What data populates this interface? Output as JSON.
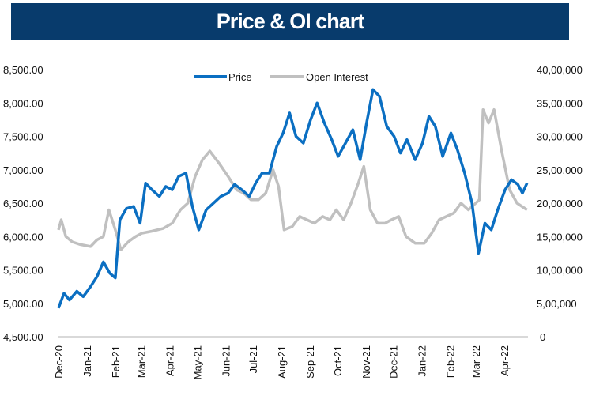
{
  "chart_data": {
    "type": "line",
    "title": "Price & OI chart",
    "legend": {
      "placement": "top-center",
      "entries": [
        "Price",
        "Open Interest"
      ]
    },
    "grid": false,
    "x_ticks": [
      "Dec-20",
      "Jan-21",
      "Feb-21",
      "Mar-21",
      "Apr-21",
      "May-21",
      "Jun-21",
      "Jul-21",
      "Aug-21",
      "Sep-21",
      "Oct-21",
      "Nov-21",
      "Dec-21",
      "Jan-22",
      "Feb-22",
      "Mar-22",
      "Apr-22"
    ],
    "x_range": [
      "2020-11-30",
      "2022-04-26"
    ],
    "y_left": {
      "range": [
        4500,
        8500
      ],
      "ticks": [
        "4,500.00",
        "5,000.00",
        "5,500.00",
        "6,000.00",
        "6,500.00",
        "7,000.00",
        "7,500.00",
        "8,000.00",
        "8,500.00"
      ]
    },
    "y_right": {
      "range": [
        0,
        4000000
      ],
      "ticks": [
        "0",
        "5,00,000",
        "10,00,000",
        "15,00,000",
        "20,00,000",
        "25,00,000",
        "30,00,000",
        "35,00,000",
        "40,00,000"
      ]
    },
    "colors": {
      "price": "#0B6FC2",
      "oi": "#C0C0C0",
      "title_bg": "#083B6C"
    },
    "series": [
      {
        "name": "Price",
        "axis": "left",
        "points": [
          [
            "2020-11-30",
            4930
          ],
          [
            "2020-12-06",
            5150
          ],
          [
            "2020-12-12",
            5050
          ],
          [
            "2020-12-20",
            5180
          ],
          [
            "2020-12-27",
            5100
          ],
          [
            "2021-01-04",
            5250
          ],
          [
            "2021-01-11",
            5400
          ],
          [
            "2021-01-18",
            5620
          ],
          [
            "2021-01-25",
            5450
          ],
          [
            "2021-01-31",
            5380
          ],
          [
            "2021-02-05",
            6250
          ],
          [
            "2021-02-12",
            6420
          ],
          [
            "2021-02-20",
            6450
          ],
          [
            "2021-02-27",
            6200
          ],
          [
            "2021-03-05",
            6800
          ],
          [
            "2021-03-12",
            6700
          ],
          [
            "2021-03-20",
            6600
          ],
          [
            "2021-03-27",
            6750
          ],
          [
            "2021-04-03",
            6700
          ],
          [
            "2021-04-10",
            6900
          ],
          [
            "2021-04-18",
            6950
          ],
          [
            "2021-04-25",
            6450
          ],
          [
            "2021-05-02",
            6100
          ],
          [
            "2021-05-10",
            6400
          ],
          [
            "2021-05-18",
            6500
          ],
          [
            "2021-05-26",
            6600
          ],
          [
            "2021-06-03",
            6650
          ],
          [
            "2021-06-10",
            6780
          ],
          [
            "2021-06-18",
            6700
          ],
          [
            "2021-06-26",
            6600
          ],
          [
            "2021-07-03",
            6800
          ],
          [
            "2021-07-10",
            6950
          ],
          [
            "2021-07-18",
            6950
          ],
          [
            "2021-07-26",
            7350
          ],
          [
            "2021-08-02",
            7550
          ],
          [
            "2021-08-09",
            7850
          ],
          [
            "2021-08-16",
            7500
          ],
          [
            "2021-08-24",
            7400
          ],
          [
            "2021-09-01",
            7750
          ],
          [
            "2021-09-08",
            8000
          ],
          [
            "2021-09-16",
            7700
          ],
          [
            "2021-09-24",
            7450
          ],
          [
            "2021-10-01",
            7200
          ],
          [
            "2021-10-09",
            7400
          ],
          [
            "2021-10-17",
            7600
          ],
          [
            "2021-10-25",
            7150
          ],
          [
            "2021-11-01",
            7700
          ],
          [
            "2021-11-08",
            8200
          ],
          [
            "2021-11-15",
            8100
          ],
          [
            "2021-11-23",
            7650
          ],
          [
            "2021-12-01",
            7500
          ],
          [
            "2021-12-08",
            7250
          ],
          [
            "2021-12-15",
            7450
          ],
          [
            "2021-12-24",
            7150
          ],
          [
            "2022-01-01",
            7400
          ],
          [
            "2022-01-08",
            7800
          ],
          [
            "2022-01-15",
            7650
          ],
          [
            "2022-01-23",
            7200
          ],
          [
            "2022-02-01",
            7550
          ],
          [
            "2022-02-08",
            7300
          ],
          [
            "2022-02-16",
            6950
          ],
          [
            "2022-02-24",
            6500
          ],
          [
            "2022-03-03",
            5750
          ],
          [
            "2022-03-10",
            6200
          ],
          [
            "2022-03-17",
            6100
          ],
          [
            "2022-03-24",
            6400
          ],
          [
            "2022-04-01",
            6700
          ],
          [
            "2022-04-08",
            6850
          ],
          [
            "2022-04-15",
            6780
          ],
          [
            "2022-04-20",
            6650
          ],
          [
            "2022-04-25",
            6800
          ]
        ]
      },
      {
        "name": "Open Interest",
        "axis": "right",
        "points": [
          [
            "2020-11-30",
            1600000
          ],
          [
            "2020-12-03",
            1750000
          ],
          [
            "2020-12-08",
            1500000
          ],
          [
            "2020-12-15",
            1420000
          ],
          [
            "2020-12-24",
            1380000
          ],
          [
            "2021-01-04",
            1350000
          ],
          [
            "2021-01-11",
            1450000
          ],
          [
            "2021-01-18",
            1500000
          ],
          [
            "2021-01-24",
            1900000
          ],
          [
            "2021-01-31",
            1600000
          ],
          [
            "2021-02-06",
            1300000
          ],
          [
            "2021-02-14",
            1420000
          ],
          [
            "2021-02-22",
            1500000
          ],
          [
            "2021-03-01",
            1550000
          ],
          [
            "2021-03-12",
            1580000
          ],
          [
            "2021-03-24",
            1620000
          ],
          [
            "2021-04-03",
            1700000
          ],
          [
            "2021-04-12",
            1900000
          ],
          [
            "2021-04-20",
            2000000
          ],
          [
            "2021-04-28",
            2400000
          ],
          [
            "2021-05-06",
            2650000
          ],
          [
            "2021-05-14",
            2780000
          ],
          [
            "2021-05-24",
            2600000
          ],
          [
            "2021-06-03",
            2400000
          ],
          [
            "2021-06-12",
            2200000
          ],
          [
            "2021-06-20",
            2150000
          ],
          [
            "2021-06-28",
            2050000
          ],
          [
            "2021-07-06",
            2050000
          ],
          [
            "2021-07-14",
            2150000
          ],
          [
            "2021-07-22",
            2500000
          ],
          [
            "2021-07-28",
            2250000
          ],
          [
            "2021-08-03",
            1600000
          ],
          [
            "2021-08-12",
            1650000
          ],
          [
            "2021-08-20",
            1800000
          ],
          [
            "2021-08-28",
            1750000
          ],
          [
            "2021-09-05",
            1700000
          ],
          [
            "2021-09-14",
            1800000
          ],
          [
            "2021-09-22",
            1750000
          ],
          [
            "2021-09-29",
            1900000
          ],
          [
            "2021-10-07",
            1750000
          ],
          [
            "2021-10-15",
            2000000
          ],
          [
            "2021-10-23",
            2300000
          ],
          [
            "2021-10-29",
            2550000
          ],
          [
            "2021-11-05",
            1900000
          ],
          [
            "2021-11-13",
            1700000
          ],
          [
            "2021-11-21",
            1700000
          ],
          [
            "2021-11-28",
            1750000
          ],
          [
            "2021-12-06",
            1800000
          ],
          [
            "2021-12-14",
            1500000
          ],
          [
            "2021-12-24",
            1400000
          ],
          [
            "2022-01-03",
            1400000
          ],
          [
            "2022-01-11",
            1550000
          ],
          [
            "2022-01-19",
            1750000
          ],
          [
            "2022-01-27",
            1800000
          ],
          [
            "2022-02-04",
            1850000
          ],
          [
            "2022-02-12",
            2000000
          ],
          [
            "2022-02-20",
            1900000
          ],
          [
            "2022-02-28",
            2000000
          ],
          [
            "2022-03-04",
            2050000
          ],
          [
            "2022-03-08",
            3400000
          ],
          [
            "2022-03-14",
            3200000
          ],
          [
            "2022-03-20",
            3400000
          ],
          [
            "2022-03-28",
            2800000
          ],
          [
            "2022-04-06",
            2200000
          ],
          [
            "2022-04-14",
            2000000
          ],
          [
            "2022-04-25",
            1900000
          ]
        ]
      }
    ]
  }
}
